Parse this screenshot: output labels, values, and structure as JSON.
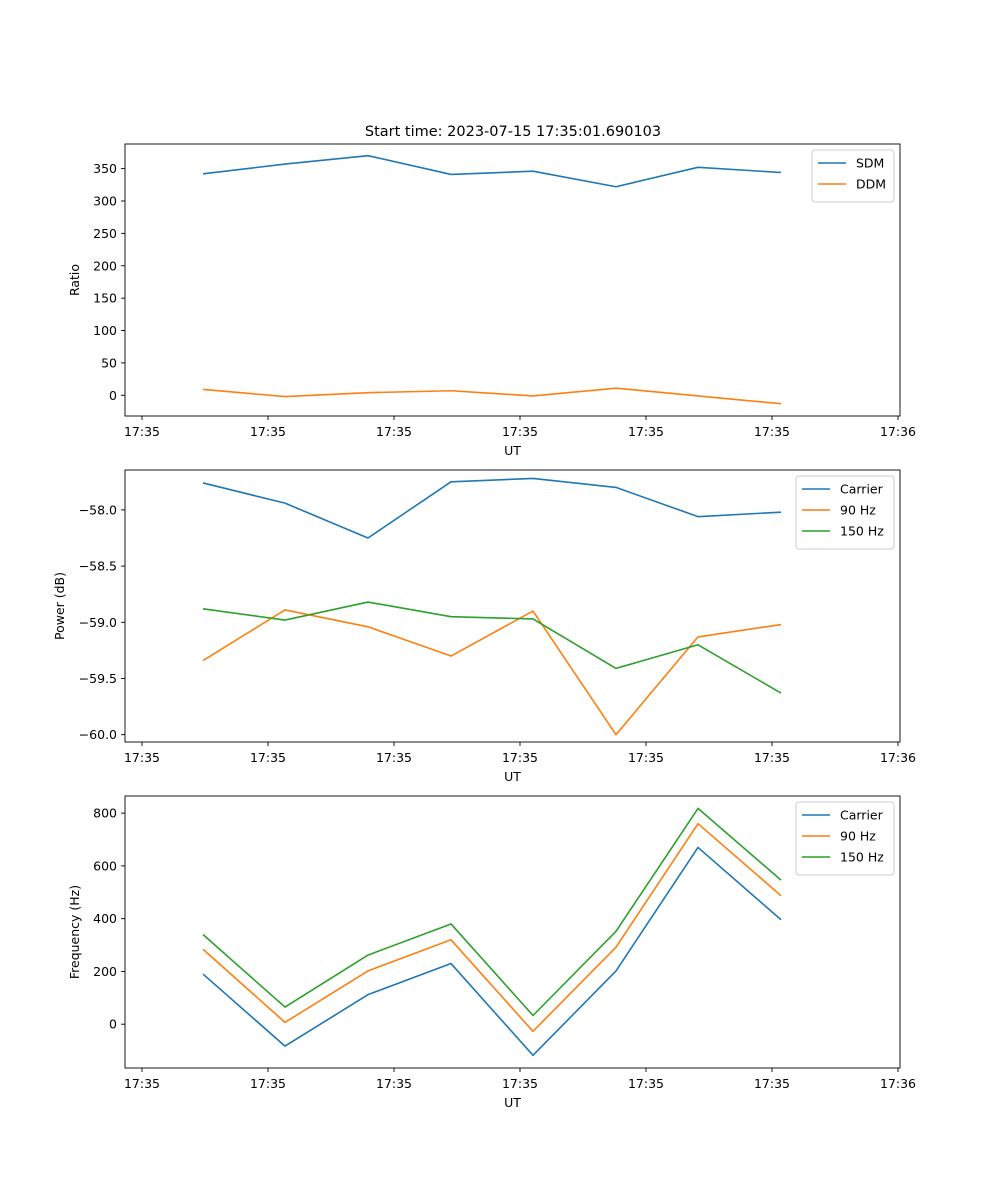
{
  "title": "Start time: 2023-07-15 17:35:01.690103",
  "colors": {
    "blue": "#1f77b4",
    "orange": "#ff7f0e",
    "green": "#2ca02c"
  },
  "chart_data": [
    {
      "type": "line",
      "name": "ratio",
      "xlabel": "UT",
      "ylabel": "Ratio",
      "xticks": [
        "17:35",
        "17:35",
        "17:35",
        "17:35",
        "17:35",
        "17:35",
        "17:36"
      ],
      "yticks": [
        0,
        50,
        100,
        150,
        200,
        250,
        300,
        350
      ],
      "ylim": [
        -32,
        388
      ],
      "x": [
        1,
        2,
        3,
        4,
        5,
        6,
        7,
        8
      ],
      "xlim": [
        0,
        10
      ],
      "legend": "top-right",
      "series": [
        {
          "name": "SDM",
          "color": "blue",
          "values": [
            342,
            357,
            370,
            341,
            346,
            322,
            352,
            344
          ]
        },
        {
          "name": "DDM",
          "color": "orange",
          "values": [
            9,
            -2,
            4,
            7,
            -1,
            11,
            -1,
            -13
          ]
        }
      ]
    },
    {
      "type": "line",
      "name": "power",
      "xlabel": "UT",
      "ylabel": "Power (dB)",
      "xticks": [
        "17:35",
        "17:35",
        "17:35",
        "17:35",
        "17:35",
        "17:35",
        "17:36"
      ],
      "yticks": [
        -58.0,
        -58.5,
        -59.0,
        -59.5,
        -60.0
      ],
      "ylim": [
        -60.065,
        -57.645
      ],
      "x": [
        1,
        2,
        3,
        4,
        5,
        6,
        7,
        8
      ],
      "xlim": [
        0,
        10
      ],
      "legend": "top-right",
      "series": [
        {
          "name": "Carrier",
          "color": "blue",
          "values": [
            -57.76,
            -57.94,
            -58.25,
            -57.75,
            -57.72,
            -57.8,
            -58.06,
            -58.02
          ]
        },
        {
          "name": "90 Hz",
          "color": "orange",
          "values": [
            -59.34,
            -58.89,
            -59.04,
            -59.3,
            -58.9,
            -60.0,
            -59.13,
            -59.02
          ]
        },
        {
          "name": "150 Hz",
          "color": "green",
          "values": [
            -58.88,
            -58.98,
            -58.82,
            -58.95,
            -58.97,
            -59.41,
            -59.2,
            -59.63
          ]
        }
      ]
    },
    {
      "type": "line",
      "name": "frequency",
      "xlabel": "UT",
      "ylabel": "Frequency (Hz)",
      "xticks": [
        "17:35",
        "17:35",
        "17:35",
        "17:35",
        "17:35",
        "17:35",
        "17:36"
      ],
      "yticks": [
        0,
        200,
        400,
        600,
        800
      ],
      "ylim": [
        -166,
        865
      ],
      "x": [
        1,
        2,
        3,
        4,
        5,
        6,
        7,
        8
      ],
      "xlim": [
        0,
        10
      ],
      "legend": "top-right",
      "series": [
        {
          "name": "Carrier",
          "color": "blue",
          "values": [
            190,
            -83,
            112,
            230,
            -118,
            202,
            670,
            396
          ]
        },
        {
          "name": "90 Hz",
          "color": "orange",
          "values": [
            284,
            7,
            202,
            320,
            -27,
            292,
            760,
            487
          ]
        },
        {
          "name": "150 Hz",
          "color": "green",
          "values": [
            340,
            65,
            262,
            380,
            33,
            352,
            818,
            546
          ]
        }
      ]
    }
  ]
}
